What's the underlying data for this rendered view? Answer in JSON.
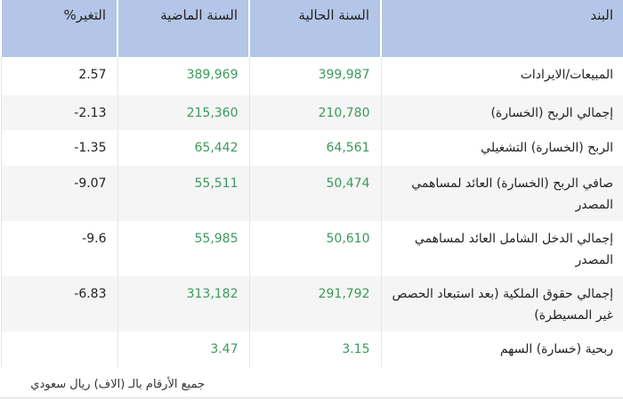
{
  "table": {
    "headers": [
      "البند",
      "السنة الحالية",
      "السنة الماضية",
      "التغير%"
    ],
    "rows": [
      {
        "item": "المبيعات/الايرادات",
        "current": "399,987",
        "previous": "389,969",
        "change": "2.57"
      },
      {
        "item": "إجمالي الربح (الخسارة)",
        "current": "210,780",
        "previous": "215,360",
        "change": "2.13-"
      },
      {
        "item": "الربح (الخسارة) التشغيلي",
        "current": "64,561",
        "previous": "65,442",
        "change": "1.35-"
      },
      {
        "item": "صافي الربح (الخسارة) العائد لمساهمي المصدر",
        "current": "50,474",
        "previous": "55,511",
        "change": "9.07-"
      },
      {
        "item": "إجمالي الدخل الشامل العائد لمساهمي المصدر",
        "current": "50,610",
        "previous": "55,985",
        "change": "9.6-"
      },
      {
        "item": "إجمالي حقوق الملكية (بعد استبعاد الحصص غير المسيطرة)",
        "current": "291,792",
        "previous": "313,182",
        "change": "6.83-"
      },
      {
        "item": "ربحية (خسارة) السهم",
        "current": "3.15",
        "previous": "3.47",
        "change": ""
      }
    ]
  },
  "footer": "جميع الأرقام بالـ (الاف) ريال سعودي",
  "colors": {
    "header_bg": "#b4c6e7",
    "value_green": "#3a9a5b",
    "alt_row": "#f5f5f5"
  }
}
